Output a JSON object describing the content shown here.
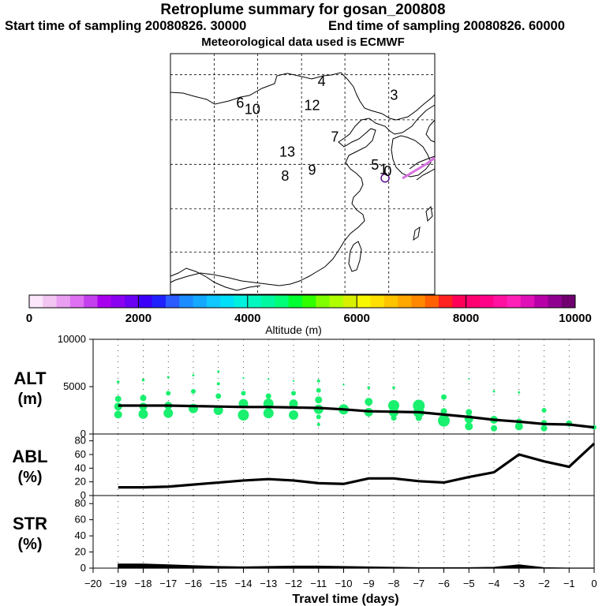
{
  "header": {
    "title": "Retroplume summary for gosan_200808",
    "start_text": "Start time of sampling 20080826. 30000",
    "end_text": "End time of sampling 20080826. 60000",
    "met_text": "Meteorological data used is ECMWF"
  },
  "map": {
    "labels": [
      {
        "text": "4",
        "lon": 128.6,
        "lat": 49.6
      },
      {
        "text": "3",
        "lon": 142.3,
        "lat": 47.3
      },
      {
        "text": "6",
        "lon": 113.2,
        "lat": 46.0
      },
      {
        "text": "10",
        "lon": 115.5,
        "lat": 45.0
      },
      {
        "text": "12",
        "lon": 126.8,
        "lat": 45.6
      },
      {
        "text": "7",
        "lon": 131.1,
        "lat": 40.4
      },
      {
        "text": "13",
        "lon": 122.1,
        "lat": 37.9
      },
      {
        "text": "9",
        "lon": 126.8,
        "lat": 34.9
      },
      {
        "text": "8",
        "lon": 121.7,
        "lat": 33.9
      },
      {
        "text": "5",
        "lon": 138.7,
        "lat": 35.7
      },
      {
        "text": "1",
        "lon": 140.3,
        "lat": 35.0
      },
      {
        "text": "0",
        "lon": 141.1,
        "lat": 34.7
      }
    ],
    "receptor": {
      "lon": 141.5,
      "lat": 35.5
    }
  },
  "colorbar": {
    "ticks": [
      "0",
      "2000",
      "4000",
      "6000",
      "8000",
      "10000"
    ],
    "label": "Altitude (m)",
    "colors": [
      "#fbe6fb",
      "#f2c4f2",
      "#ea9ef2",
      "#df70f2",
      "#c440ee",
      "#a800ee",
      "#8a00f0",
      "#6a00f4",
      "#3a00f8",
      "#2020ff",
      "#2b5cff",
      "#1a8cff",
      "#15a8ff",
      "#10c8ff",
      "#00e0f8",
      "#00f0e0",
      "#00f8c0",
      "#00f8a0",
      "#00ff78",
      "#00ff30",
      "#30ff00",
      "#80ff00",
      "#b0ff00",
      "#d8f000",
      "#f8f800",
      "#ffe000",
      "#ffc400",
      "#ffa800",
      "#ff8800",
      "#ff6000",
      "#ff2020",
      "#ff0058",
      "#ff0070",
      "#ff0088",
      "#ff10a0",
      "#ff20b8",
      "#e010b8",
      "#b800a8",
      "#900090",
      "#700070"
    ]
  },
  "chart_data": [
    {
      "type": "scatter",
      "name": "ALT",
      "ylabel": "ALT",
      "yunit": "(m)",
      "ylim": [
        0,
        10000
      ],
      "yticks": [
        0,
        5000,
        10000
      ],
      "xlim": [
        -20,
        0
      ],
      "line": {
        "x": [
          -19,
          -18,
          -17,
          -16,
          -15,
          -14,
          -13,
          -12,
          -11,
          -10,
          -9,
          -8,
          -7,
          -6,
          -5,
          -4,
          -3,
          -2,
          -1,
          0
        ],
        "y": [
          3000,
          3000,
          3000,
          2950,
          2900,
          2850,
          2850,
          2800,
          2750,
          2600,
          2400,
          2350,
          2300,
          2050,
          1800,
          1500,
          1300,
          1050,
          1000,
          700
        ]
      },
      "points": [
        {
          "x": -19,
          "y": 5500,
          "r": 1.8
        },
        {
          "x": -19,
          "y": 3700,
          "r": 4
        },
        {
          "x": -19,
          "y": 2900,
          "r": 5
        },
        {
          "x": -19,
          "y": 2050,
          "r": 5
        },
        {
          "x": -18,
          "y": 5700,
          "r": 1.8
        },
        {
          "x": -18,
          "y": 3800,
          "r": 4
        },
        {
          "x": -18,
          "y": 2900,
          "r": 5
        },
        {
          "x": -18,
          "y": 2100,
          "r": 6
        },
        {
          "x": -17,
          "y": 6000,
          "r": 1.5
        },
        {
          "x": -17,
          "y": 4300,
          "r": 3
        },
        {
          "x": -17,
          "y": 3000,
          "r": 5
        },
        {
          "x": -17,
          "y": 2200,
          "r": 6
        },
        {
          "x": -16,
          "y": 6200,
          "r": 1.5
        },
        {
          "x": -16,
          "y": 4500,
          "r": 3
        },
        {
          "x": -16,
          "y": 2700,
          "r": 6
        },
        {
          "x": -15,
          "y": 6600,
          "r": 1.5
        },
        {
          "x": -15,
          "y": 5300,
          "r": 2
        },
        {
          "x": -15,
          "y": 4000,
          "r": 3.5
        },
        {
          "x": -15,
          "y": 2500,
          "r": 6
        },
        {
          "x": -14,
          "y": 5900,
          "r": 1.2
        },
        {
          "x": -14,
          "y": 4300,
          "r": 3
        },
        {
          "x": -14,
          "y": 3200,
          "r": 6
        },
        {
          "x": -14,
          "y": 2000,
          "r": 7
        },
        {
          "x": -13,
          "y": 5800,
          "r": 1.2
        },
        {
          "x": -13,
          "y": 4000,
          "r": 3.5
        },
        {
          "x": -13,
          "y": 3200,
          "r": 6.5
        },
        {
          "x": -13,
          "y": 2200,
          "r": 6.5
        },
        {
          "x": -12,
          "y": 5600,
          "r": 1.2
        },
        {
          "x": -12,
          "y": 4300,
          "r": 3
        },
        {
          "x": -12,
          "y": 3200,
          "r": 5.5
        },
        {
          "x": -12,
          "y": 2000,
          "r": 6
        },
        {
          "x": -11,
          "y": 5600,
          "r": 2
        },
        {
          "x": -11,
          "y": 4600,
          "r": 3
        },
        {
          "x": -11,
          "y": 3600,
          "r": 4.5
        },
        {
          "x": -11,
          "y": 2600,
          "r": 6
        },
        {
          "x": -11,
          "y": 1800,
          "r": 3
        },
        {
          "x": -11,
          "y": 1000,
          "r": 2
        },
        {
          "x": -10,
          "y": 5200,
          "r": 1.2
        },
        {
          "x": -10,
          "y": 2600,
          "r": 6.5
        },
        {
          "x": -9,
          "y": 4900,
          "r": 1.8
        },
        {
          "x": -9,
          "y": 3400,
          "r": 5
        },
        {
          "x": -9,
          "y": 2300,
          "r": 5.5
        },
        {
          "x": -8,
          "y": 4900,
          "r": 1.8
        },
        {
          "x": -8,
          "y": 3000,
          "r": 7
        },
        {
          "x": -8,
          "y": 2300,
          "r": 6
        },
        {
          "x": -8,
          "y": 1700,
          "r": 3.5
        },
        {
          "x": -7,
          "y": 3000,
          "r": 7.5
        },
        {
          "x": -7,
          "y": 2300,
          "r": 7
        },
        {
          "x": -7,
          "y": 1700,
          "r": 4
        },
        {
          "x": -6,
          "y": 3900,
          "r": 3.5
        },
        {
          "x": -6,
          "y": 2400,
          "r": 4
        },
        {
          "x": -6,
          "y": 1400,
          "r": 7.5
        },
        {
          "x": -5,
          "y": 5800,
          "r": 1
        },
        {
          "x": -5,
          "y": 2300,
          "r": 4
        },
        {
          "x": -5,
          "y": 1600,
          "r": 5.5
        },
        {
          "x": -5,
          "y": 800,
          "r": 5
        },
        {
          "x": -4,
          "y": 4500,
          "r": 1.5
        },
        {
          "x": -4,
          "y": 1500,
          "r": 5
        },
        {
          "x": -4,
          "y": 600,
          "r": 4
        },
        {
          "x": -3,
          "y": 4400,
          "r": 1.5
        },
        {
          "x": -3,
          "y": 1300,
          "r": 4
        },
        {
          "x": -3,
          "y": 800,
          "r": 5
        },
        {
          "x": -2,
          "y": 2500,
          "r": 3
        },
        {
          "x": -2,
          "y": 1200,
          "r": 3.5
        },
        {
          "x": -2,
          "y": 600,
          "r": 4
        },
        {
          "x": -1,
          "y": 1100,
          "r": 4
        },
        {
          "x": 0,
          "y": 700,
          "r": 3
        }
      ]
    },
    {
      "type": "line",
      "name": "ABL",
      "ylabel": "ABL",
      "yunit": "(%)",
      "ylim": [
        0,
        90
      ],
      "yticks": [
        0,
        20,
        40,
        60,
        80
      ],
      "xlim": [
        -20,
        0
      ],
      "x": [
        -19,
        -18,
        -17,
        -16,
        -15,
        -14,
        -13,
        -12,
        -11,
        -10,
        -9,
        -8,
        -7,
        -6,
        -5,
        -4,
        -3,
        -2,
        -1,
        0
      ],
      "y": [
        12,
        12,
        13,
        16,
        19,
        22,
        24,
        22,
        18,
        17,
        25,
        25,
        21,
        19,
        27,
        34,
        60,
        50,
        42,
        76
      ]
    },
    {
      "type": "area",
      "name": "STR",
      "ylabel": "STR",
      "yunit": "(%)",
      "ylim": [
        0,
        90
      ],
      "yticks": [
        0,
        20,
        40,
        60,
        80
      ],
      "xlim": [
        -20,
        0
      ],
      "x": [
        -19,
        -18,
        -17,
        -16,
        -15,
        -14,
        -13,
        -12,
        -11,
        -10,
        -9,
        -8,
        -7,
        -6,
        -5,
        -4,
        -3,
        -2,
        -1,
        0
      ],
      "y": [
        5,
        5,
        4,
        3,
        2,
        1.5,
        2,
        2.5,
        2.5,
        2,
        1.5,
        1,
        0.5,
        0.5,
        0.5,
        1,
        4,
        0.5,
        0,
        0
      ]
    }
  ],
  "xaxis": {
    "ticks": [
      "-20",
      "-19",
      "-18",
      "-17",
      "-16",
      "-15",
      "-14",
      "-13",
      "-12",
      "-11",
      "-10",
      "-9",
      "-8",
      "-7",
      "-6",
      "-5",
      "-4",
      "-3",
      "-2",
      "-1",
      "0"
    ],
    "label": "Travel time (days)"
  }
}
